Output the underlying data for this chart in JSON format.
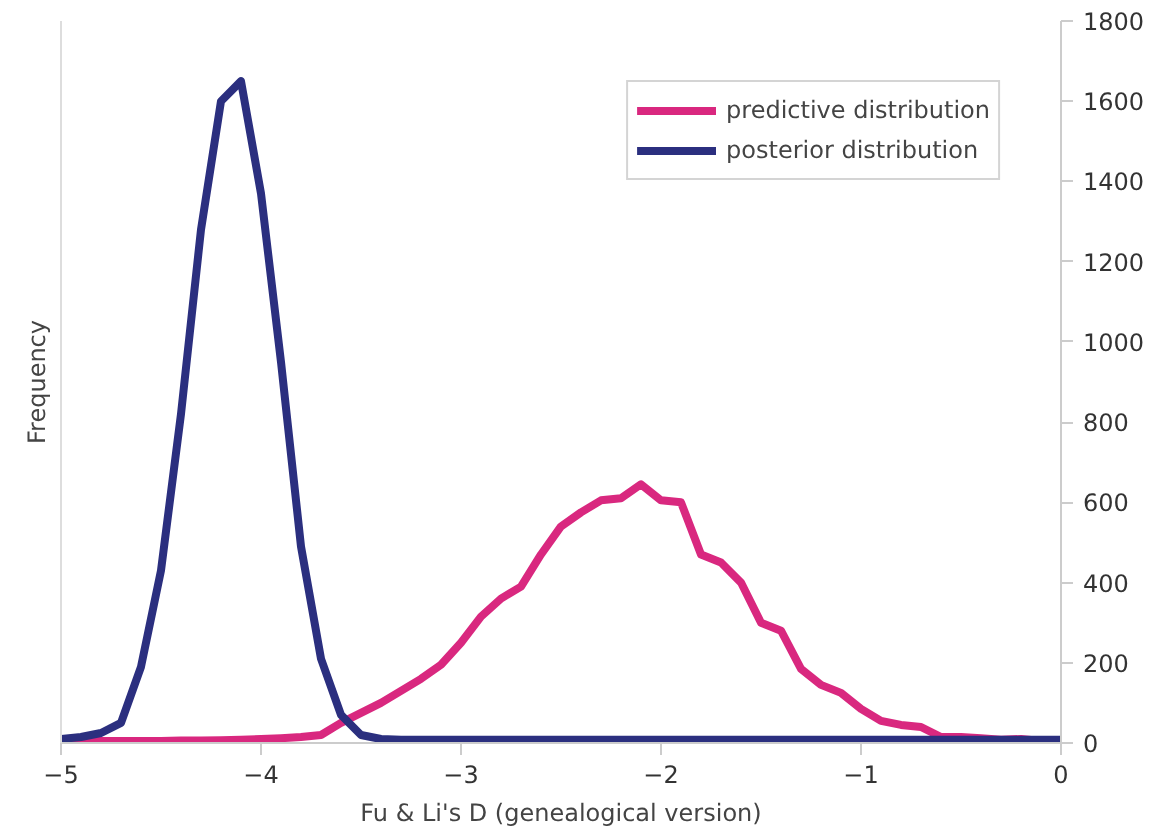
{
  "chart_data": {
    "type": "line",
    "xlabel": "Fu & Li's D (genealogical version)",
    "ylabel": "Frequency",
    "x": [
      -5,
      -4.9,
      -4.8,
      -4.7,
      -4.6,
      -4.5,
      -4.4,
      -4.3,
      -4.2,
      -4.1,
      -4,
      -3.9,
      -3.8,
      -3.7,
      -3.6,
      -3.5,
      -3.4,
      -3.3,
      -3.2,
      -3.1,
      -3,
      -2.9,
      -2.8,
      -2.7,
      -2.6,
      -2.5,
      -2.4,
      -2.3,
      -2.2,
      -2.1,
      -2,
      -1.9,
      -1.8,
      -1.7,
      -1.6,
      -1.5,
      -1.4,
      -1.3,
      -1.2,
      -1.1,
      -1,
      -0.9,
      -0.8,
      -0.7,
      -0.6,
      -0.5,
      -0.4,
      -0.3,
      -0.2,
      -0.1,
      0
    ],
    "series": [
      {
        "name": "predictive distribution",
        "color": "#d9287f",
        "values": [
          5,
          5,
          5,
          5,
          5,
          5,
          6,
          6,
          7,
          8,
          10,
          12,
          15,
          20,
          50,
          75,
          100,
          130,
          160,
          195,
          250,
          315,
          360,
          390,
          470,
          540,
          575,
          605,
          610,
          645,
          605,
          600,
          470,
          450,
          400,
          300,
          280,
          185,
          145,
          125,
          85,
          55,
          45,
          40,
          15,
          15,
          12,
          8,
          10,
          5,
          5
        ]
      },
      {
        "name": "posterior distribution",
        "color": "#2b2f7f",
        "values": [
          10,
          15,
          25,
          50,
          190,
          430,
          820,
          1280,
          1600,
          1650,
          1370,
          950,
          490,
          210,
          70,
          20,
          10,
          8,
          8,
          8,
          8,
          8,
          8,
          8,
          8,
          8,
          8,
          8,
          8,
          8,
          8,
          8,
          8,
          8,
          8,
          8,
          8,
          8,
          8,
          8,
          8,
          8,
          8,
          8,
          8,
          8,
          8,
          8,
          8,
          8,
          8
        ]
      }
    ],
    "xlim": [
      -5,
      0
    ],
    "xticks": [
      -5,
      -4,
      -3,
      -2,
      -1,
      0
    ],
    "ylim": [
      0,
      1800
    ],
    "yticks": [
      0,
      200,
      400,
      600,
      800,
      1000,
      1200,
      1400,
      1600,
      1800
    ],
    "grid": false,
    "legend": "top right",
    "marker": "none",
    "line_style": "solid"
  }
}
